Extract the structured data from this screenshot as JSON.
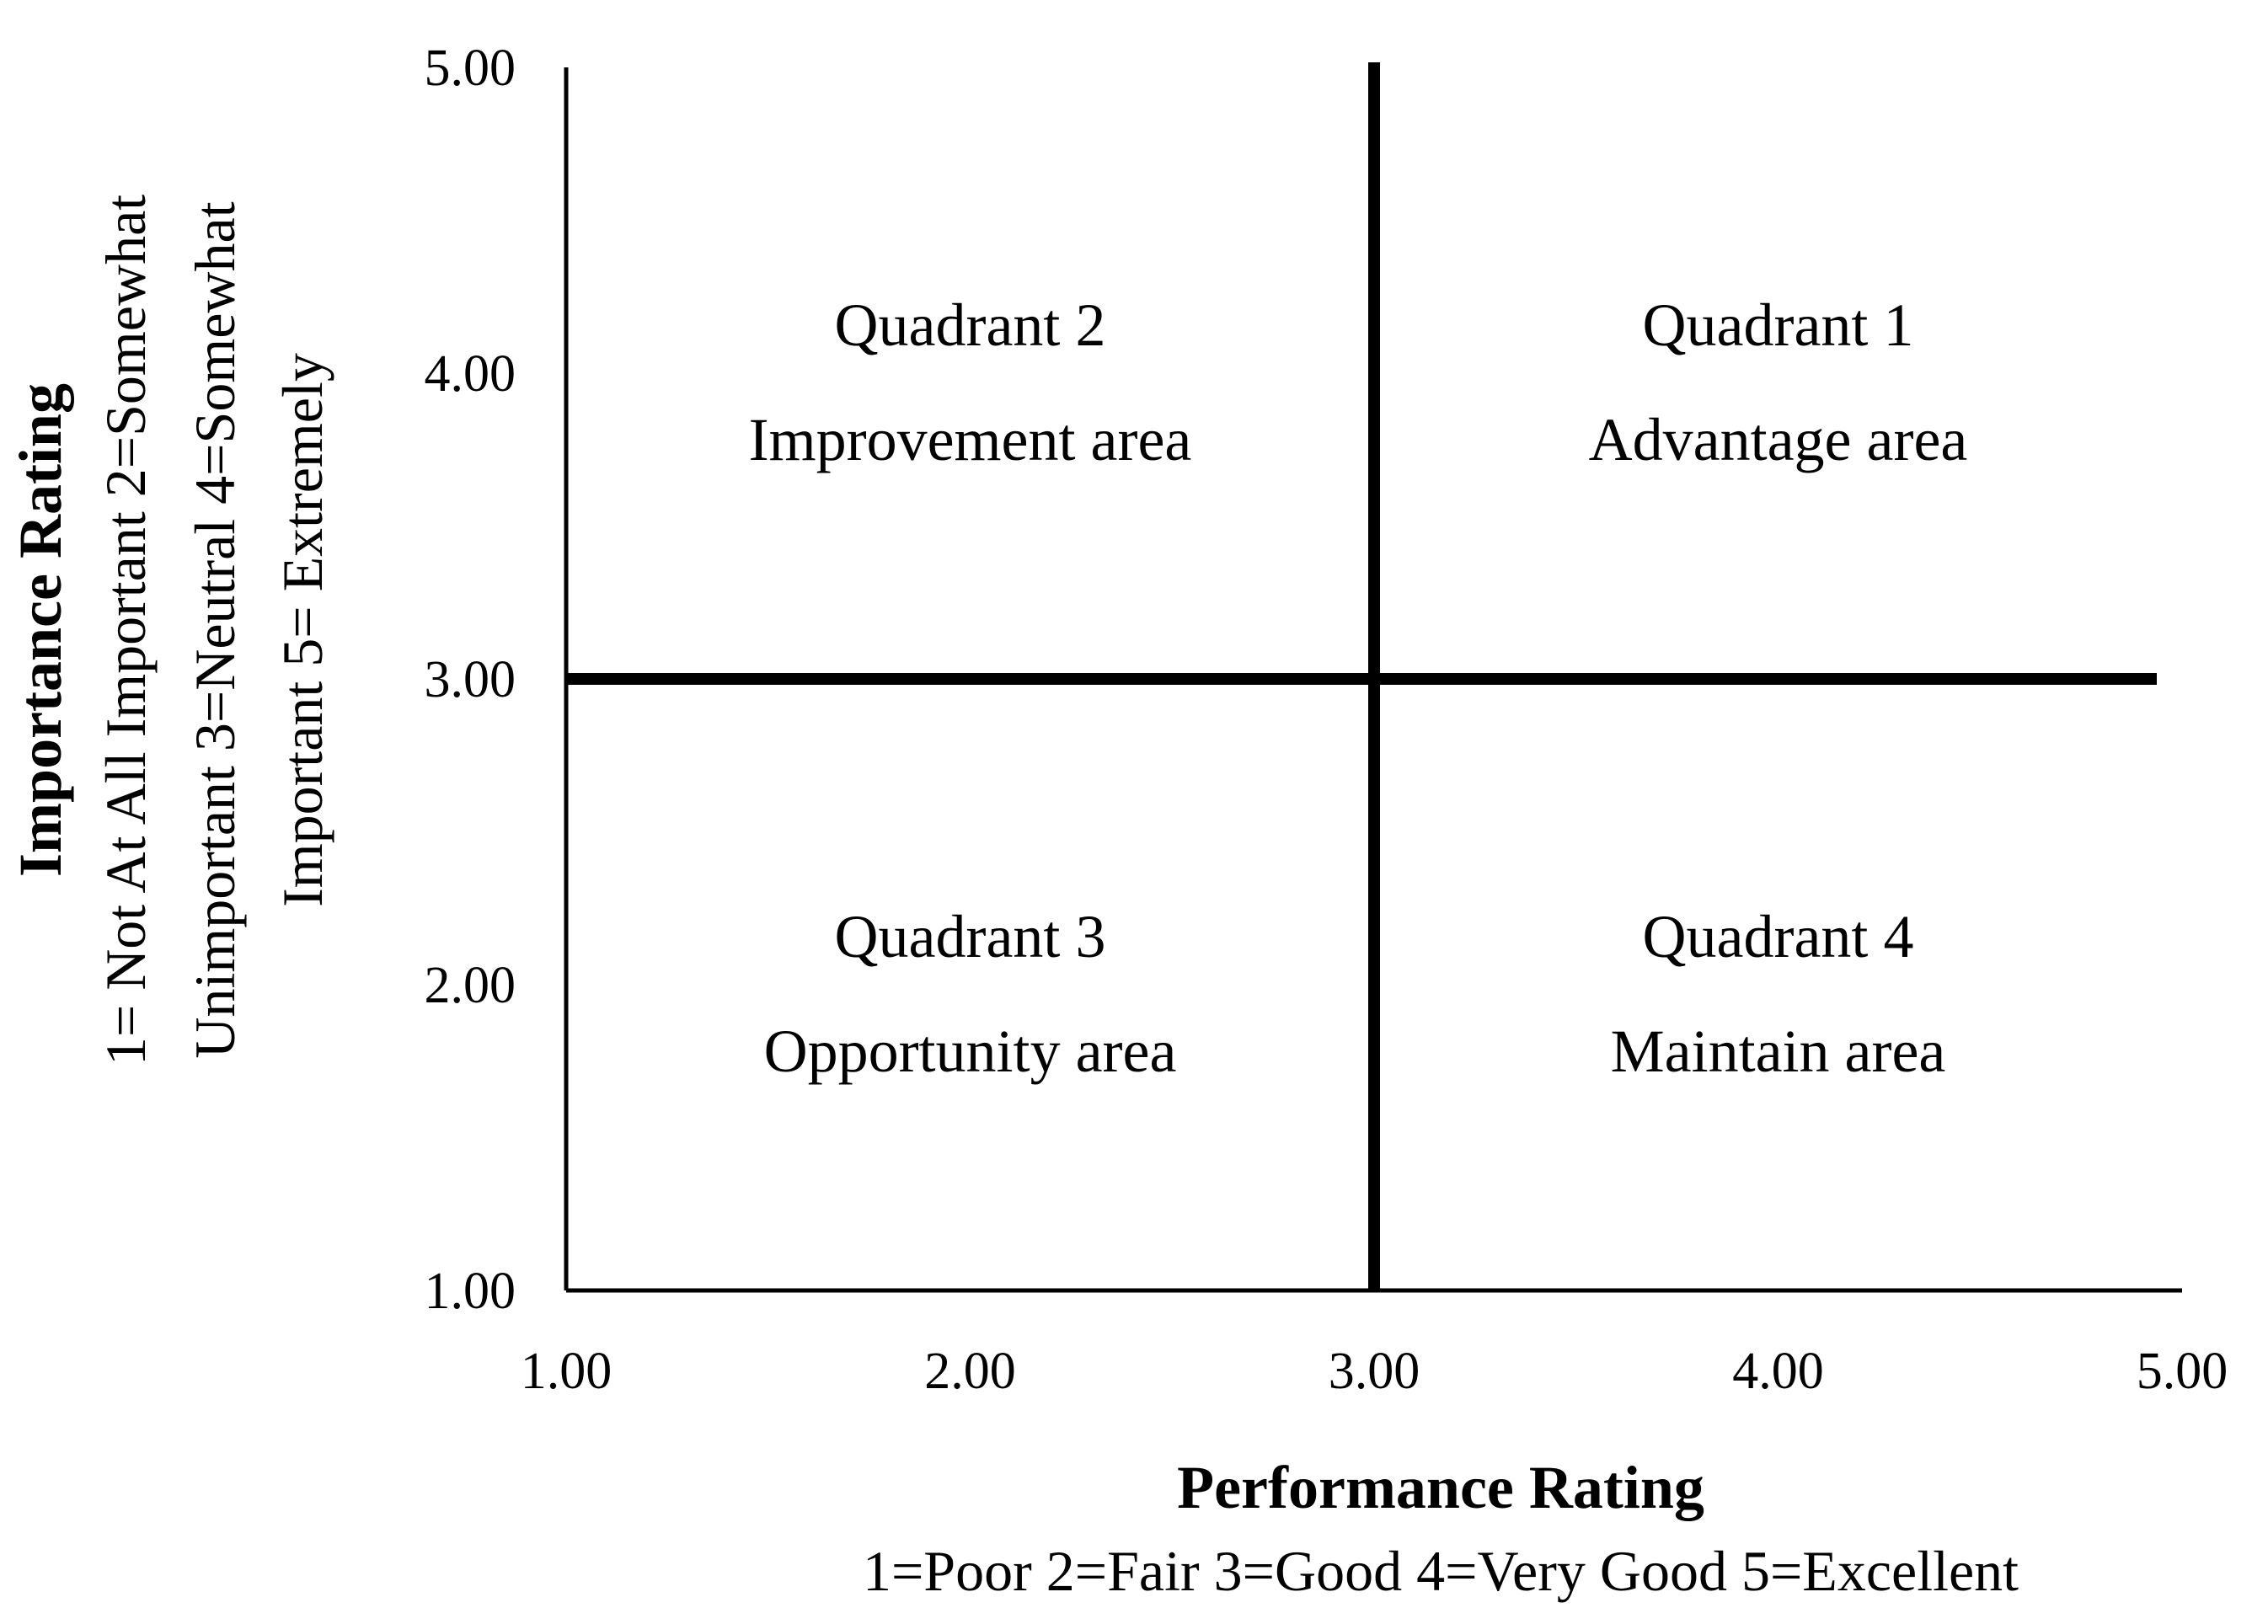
{
  "chart_data": {
    "type": "scatter",
    "title": "",
    "xlabel": "Performance Rating",
    "xlabel_scale": "1=Poor 2=Fair 3=Good 4=Very Good 5=Excellent",
    "ylabel": "Importance Rating",
    "ylabel_scale_lines": [
      "1= Not At All Important 2=Somewhat",
      "Unimportant 3=Neutral 4=Somewhat",
      "Important 5= Extremely"
    ],
    "xlim": [
      1,
      5
    ],
    "ylim": [
      1,
      5
    ],
    "xticks": [
      "1.00",
      "2.00",
      "3.00",
      "4.00",
      "5.00"
    ],
    "yticks": [
      "1.00",
      "2.00",
      "3.00",
      "4.00",
      "5.00"
    ],
    "grid": false,
    "legend": "none",
    "divider_lines": {
      "x": 3,
      "y": 3
    },
    "quadrants": [
      {
        "name": "Quadrant 1",
        "label": "Advantage area",
        "x": 4.0,
        "y": 4.0
      },
      {
        "name": "Quadrant 2",
        "label": "Improvement area",
        "x": 2.0,
        "y": 4.0
      },
      {
        "name": "Quadrant 3",
        "label": "Opportunity area",
        "x": 2.0,
        "y": 2.0
      },
      {
        "name": "Quadrant 4",
        "label": "Maintain area",
        "x": 4.0,
        "y": 2.0
      }
    ]
  }
}
